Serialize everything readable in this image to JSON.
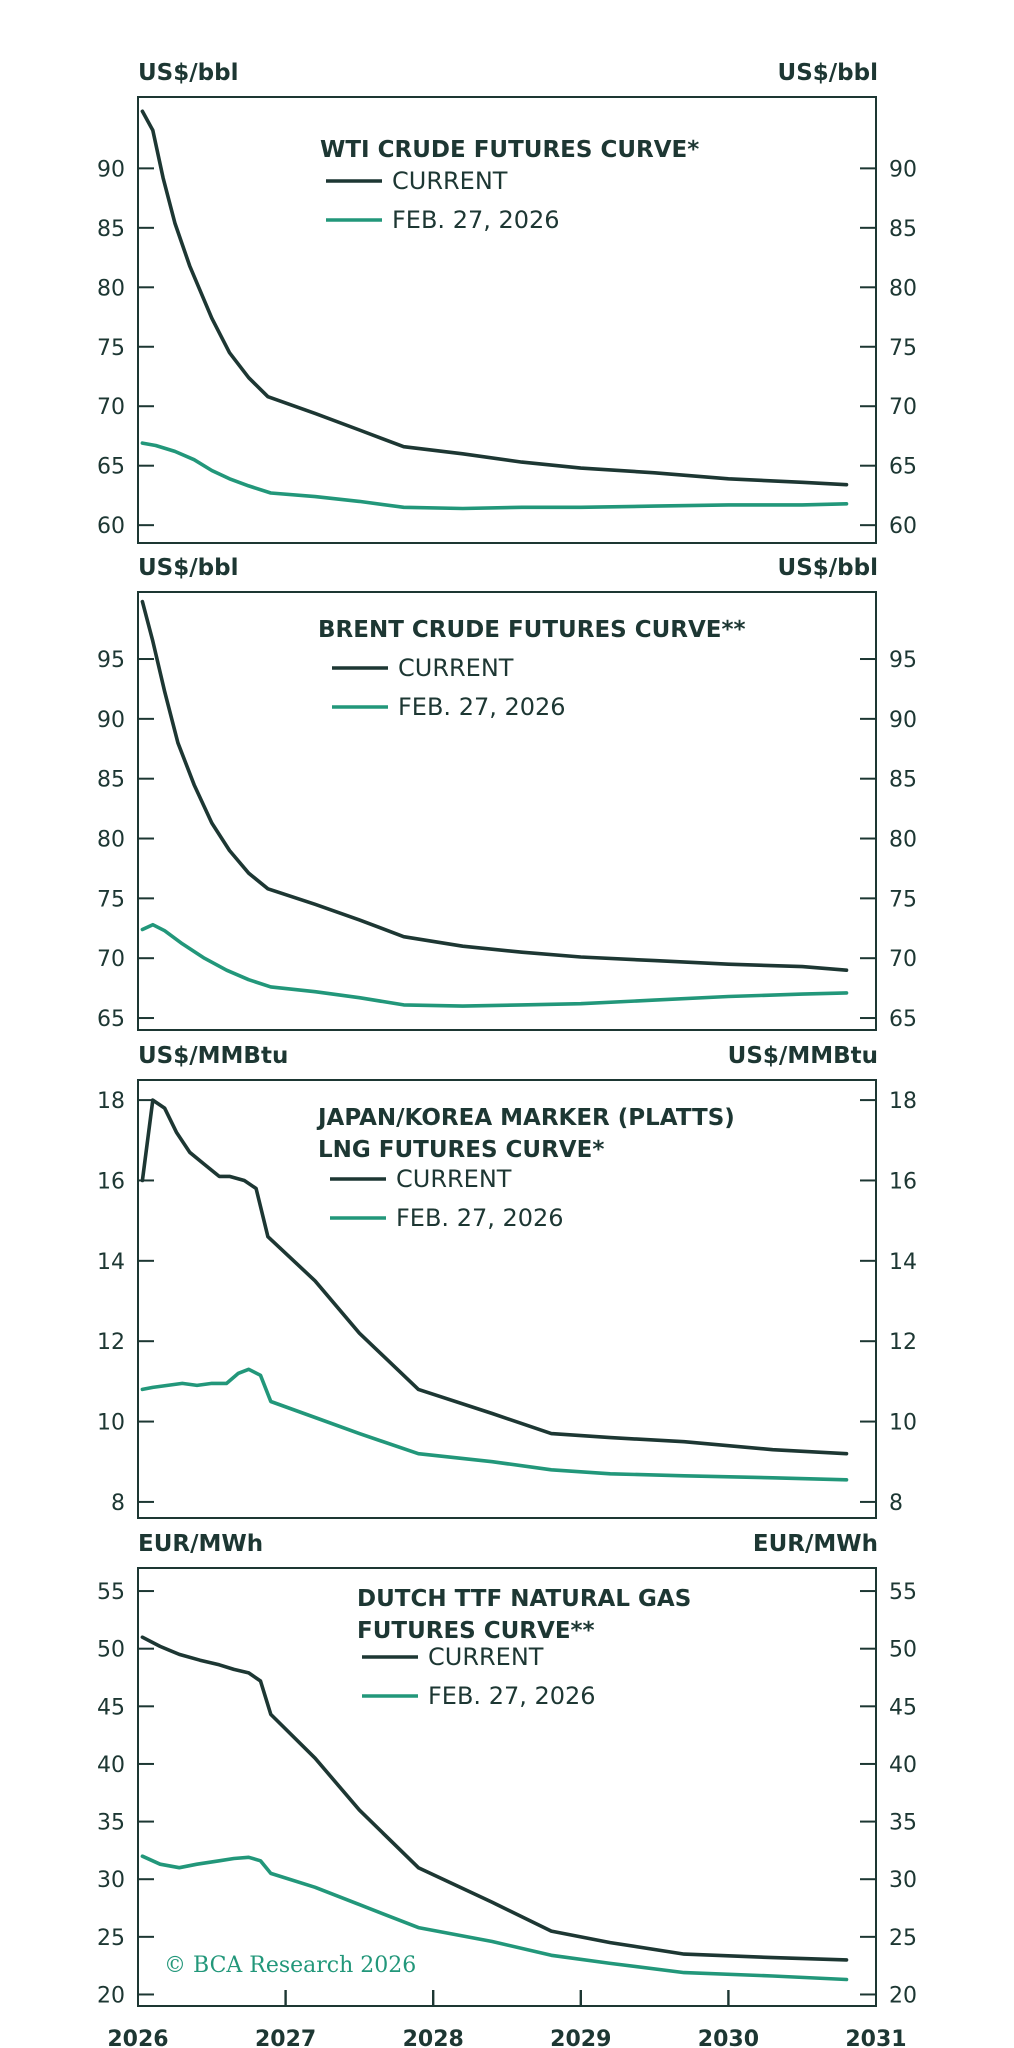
{
  "copyright": "© BCA Research 2026",
  "x_axis_ticks": [
    "2026",
    "2027",
    "2028",
    "2029",
    "2030",
    "2031"
  ],
  "colors": {
    "current": "#1d3733",
    "feb": "#22977a",
    "text": "#1d3733"
  },
  "chart_data": [
    {
      "type": "line",
      "title": "WTI CRUDE FUTURES CURVE*",
      "unit_left": "US$/bbl",
      "unit_right": "US$/bbl",
      "ylim": [
        58.5,
        96
      ],
      "yticks": [
        60,
        65,
        70,
        75,
        80,
        85,
        90
      ],
      "xlim": [
        2026.0,
        2031.0
      ],
      "legend_position": "top-center",
      "series": [
        {
          "name": "CURRENT",
          "color": "#1d3733",
          "points": [
            [
              2026.03,
              94.8
            ],
            [
              2026.1,
              93.2
            ],
            [
              2026.17,
              89.2
            ],
            [
              2026.25,
              85.4
            ],
            [
              2026.35,
              81.8
            ],
            [
              2026.5,
              77.4
            ],
            [
              2026.62,
              74.5
            ],
            [
              2026.75,
              72.4
            ],
            [
              2026.88,
              70.8
            ],
            [
              2027.2,
              69.4
            ],
            [
              2027.5,
              68.0
            ],
            [
              2027.8,
              66.6
            ],
            [
              2028.2,
              66.0
            ],
            [
              2028.6,
              65.3
            ],
            [
              2029.0,
              64.8
            ],
            [
              2029.5,
              64.4
            ],
            [
              2030.0,
              63.9
            ],
            [
              2030.5,
              63.6
            ],
            [
              2030.8,
              63.4
            ]
          ]
        },
        {
          "name": "FEB. 27, 2026",
          "color": "#22977a",
          "points": [
            [
              2026.03,
              66.9
            ],
            [
              2026.12,
              66.7
            ],
            [
              2026.25,
              66.2
            ],
            [
              2026.38,
              65.5
            ],
            [
              2026.5,
              64.6
            ],
            [
              2026.62,
              63.9
            ],
            [
              2026.75,
              63.3
            ],
            [
              2026.9,
              62.7
            ],
            [
              2027.2,
              62.4
            ],
            [
              2027.5,
              62.0
            ],
            [
              2027.8,
              61.5
            ],
            [
              2028.2,
              61.4
            ],
            [
              2028.6,
              61.5
            ],
            [
              2029.0,
              61.5
            ],
            [
              2029.5,
              61.6
            ],
            [
              2030.0,
              61.7
            ],
            [
              2030.5,
              61.7
            ],
            [
              2030.8,
              61.8
            ]
          ]
        }
      ]
    },
    {
      "type": "line",
      "title": "BRENT CRUDE FUTURES CURVE**",
      "unit_left": "US$/bbl",
      "unit_right": "US$/bbl",
      "ylim": [
        64,
        100.6
      ],
      "yticks": [
        65,
        70,
        75,
        80,
        85,
        90,
        95
      ],
      "xlim": [
        2026.0,
        2031.0
      ],
      "legend_position": "top-center",
      "series": [
        {
          "name": "CURRENT",
          "color": "#1d3733",
          "points": [
            [
              2026.03,
              99.8
            ],
            [
              2026.1,
              96.5
            ],
            [
              2026.18,
              92.3
            ],
            [
              2026.27,
              88.0
            ],
            [
              2026.38,
              84.5
            ],
            [
              2026.5,
              81.3
            ],
            [
              2026.62,
              79.0
            ],
            [
              2026.75,
              77.1
            ],
            [
              2026.88,
              75.8
            ],
            [
              2027.2,
              74.5
            ],
            [
              2027.5,
              73.2
            ],
            [
              2027.8,
              71.8
            ],
            [
              2028.2,
              71.0
            ],
            [
              2028.6,
              70.5
            ],
            [
              2029.0,
              70.1
            ],
            [
              2029.5,
              69.8
            ],
            [
              2030.0,
              69.5
            ],
            [
              2030.5,
              69.3
            ],
            [
              2030.8,
              69.0
            ]
          ]
        },
        {
          "name": "FEB. 27, 2026",
          "color": "#22977a",
          "points": [
            [
              2026.03,
              72.4
            ],
            [
              2026.1,
              72.8
            ],
            [
              2026.18,
              72.3
            ],
            [
              2026.3,
              71.2
            ],
            [
              2026.45,
              70.0
            ],
            [
              2026.6,
              69.0
            ],
            [
              2026.75,
              68.2
            ],
            [
              2026.9,
              67.6
            ],
            [
              2027.2,
              67.2
            ],
            [
              2027.5,
              66.7
            ],
            [
              2027.8,
              66.1
            ],
            [
              2028.2,
              66.0
            ],
            [
              2028.6,
              66.1
            ],
            [
              2029.0,
              66.2
            ],
            [
              2029.5,
              66.5
            ],
            [
              2030.0,
              66.8
            ],
            [
              2030.5,
              67.0
            ],
            [
              2030.8,
              67.1
            ]
          ]
        }
      ]
    },
    {
      "type": "line",
      "title": "JAPAN/KOREA MARKER (PLATTS)",
      "title_line2": "LNG FUTURES CURVE*",
      "unit_left": "US$/MMBtu",
      "unit_right": "US$/MMBtu",
      "ylim": [
        7.6,
        18.5
      ],
      "yticks": [
        8,
        10,
        12,
        14,
        16,
        18
      ],
      "xlim": [
        2026.0,
        2031.0
      ],
      "legend_position": "top-center",
      "series": [
        {
          "name": "CURRENT",
          "color": "#1d3733",
          "points": [
            [
              2026.03,
              16.0
            ],
            [
              2026.1,
              18.0
            ],
            [
              2026.18,
              17.8
            ],
            [
              2026.26,
              17.2
            ],
            [
              2026.35,
              16.7
            ],
            [
              2026.45,
              16.4
            ],
            [
              2026.55,
              16.1
            ],
            [
              2026.62,
              16.1
            ],
            [
              2026.72,
              16.0
            ],
            [
              2026.8,
              15.8
            ],
            [
              2026.88,
              14.6
            ],
            [
              2027.2,
              13.5
            ],
            [
              2027.5,
              12.2
            ],
            [
              2027.9,
              10.8
            ],
            [
              2028.4,
              10.2
            ],
            [
              2028.8,
              9.7
            ],
            [
              2029.2,
              9.6
            ],
            [
              2029.7,
              9.5
            ],
            [
              2030.3,
              9.3
            ],
            [
              2030.8,
              9.2
            ]
          ]
        },
        {
          "name": "FEB. 27, 2026",
          "color": "#22977a",
          "points": [
            [
              2026.03,
              10.8
            ],
            [
              2026.1,
              10.85
            ],
            [
              2026.2,
              10.9
            ],
            [
              2026.3,
              10.95
            ],
            [
              2026.4,
              10.9
            ],
            [
              2026.5,
              10.95
            ],
            [
              2026.6,
              10.95
            ],
            [
              2026.68,
              11.2
            ],
            [
              2026.75,
              11.3
            ],
            [
              2026.83,
              11.15
            ],
            [
              2026.9,
              10.5
            ],
            [
              2027.2,
              10.1
            ],
            [
              2027.5,
              9.7
            ],
            [
              2027.9,
              9.2
            ],
            [
              2028.4,
              9.0
            ],
            [
              2028.8,
              8.8
            ],
            [
              2029.2,
              8.7
            ],
            [
              2029.7,
              8.65
            ],
            [
              2030.3,
              8.6
            ],
            [
              2030.8,
              8.55
            ]
          ]
        }
      ]
    },
    {
      "type": "line",
      "title": "DUTCH TTF NATURAL GAS",
      "title_line2": "FUTURES CURVE**",
      "unit_left": "EUR/MWh",
      "unit_right": "EUR/MWh",
      "ylim": [
        19,
        57
      ],
      "yticks": [
        20,
        25,
        30,
        35,
        40,
        45,
        50,
        55
      ],
      "xlim": [
        2026.0,
        2031.0
      ],
      "legend_position": "top-center",
      "series": [
        {
          "name": "CURRENT",
          "color": "#1d3733",
          "points": [
            [
              2026.03,
              51.0
            ],
            [
              2026.15,
              50.2
            ],
            [
              2026.28,
              49.5
            ],
            [
              2026.42,
              49.0
            ],
            [
              2026.55,
              48.6
            ],
            [
              2026.65,
              48.2
            ],
            [
              2026.75,
              47.9
            ],
            [
              2026.83,
              47.2
            ],
            [
              2026.9,
              44.3
            ],
            [
              2027.2,
              40.5
            ],
            [
              2027.5,
              36.0
            ],
            [
              2027.9,
              31.0
            ],
            [
              2028.4,
              28.0
            ],
            [
              2028.8,
              25.5
            ],
            [
              2029.2,
              24.5
            ],
            [
              2029.7,
              23.5
            ],
            [
              2030.3,
              23.2
            ],
            [
              2030.8,
              23.0
            ]
          ]
        },
        {
          "name": "FEB. 27, 2026",
          "color": "#22977a",
          "points": [
            [
              2026.03,
              32.0
            ],
            [
              2026.15,
              31.3
            ],
            [
              2026.28,
              31.0
            ],
            [
              2026.4,
              31.3
            ],
            [
              2026.55,
              31.6
            ],
            [
              2026.65,
              31.8
            ],
            [
              2026.75,
              31.9
            ],
            [
              2026.83,
              31.6
            ],
            [
              2026.9,
              30.5
            ],
            [
              2027.2,
              29.3
            ],
            [
              2027.5,
              27.8
            ],
            [
              2027.9,
              25.8
            ],
            [
              2028.4,
              24.6
            ],
            [
              2028.8,
              23.4
            ],
            [
              2029.2,
              22.7
            ],
            [
              2029.7,
              21.9
            ],
            [
              2030.3,
              21.6
            ],
            [
              2030.8,
              21.3
            ]
          ]
        }
      ]
    }
  ]
}
